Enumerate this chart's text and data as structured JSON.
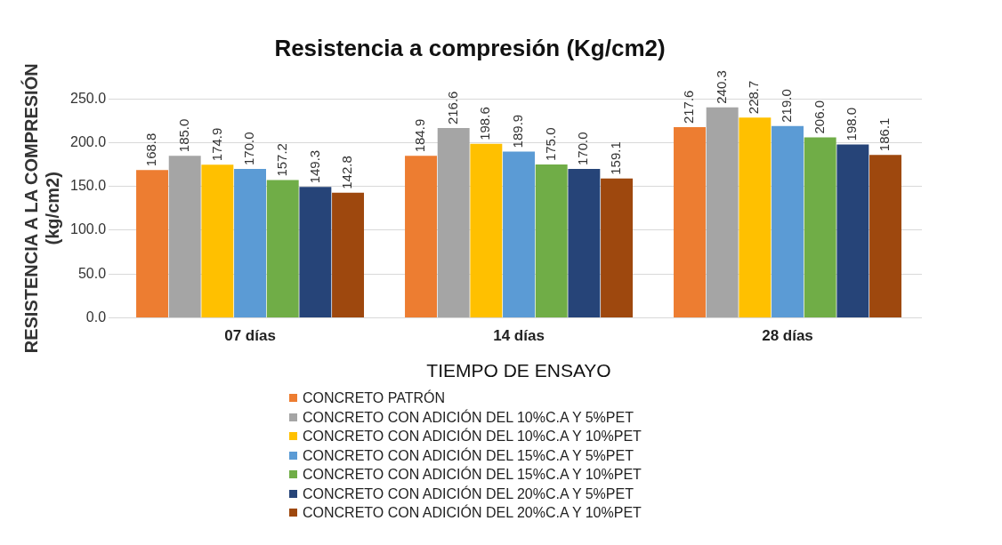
{
  "chart_data": {
    "type": "bar",
    "title": "Resistencia a compresión (Kg/cm2)",
    "xlabel": "TIEMPO DE ENSAYO",
    "ylabel": "RESISTENCIA A LA COMPRESIÓN\n(kg/cm2)",
    "categories": [
      "07 días",
      "14 días",
      "28 días"
    ],
    "ylim": [
      0,
      250
    ],
    "yticks": [
      {
        "value": 0,
        "label": "0.0"
      },
      {
        "value": 50,
        "label": "50.0"
      },
      {
        "value": 100,
        "label": "100.0"
      },
      {
        "value": 150,
        "label": "150.0"
      },
      {
        "value": 200,
        "label": "200.0"
      },
      {
        "value": 250,
        "label": "250.0"
      }
    ],
    "grid": "y",
    "legend": "bottom",
    "series": [
      {
        "name": "CONCRETO PATRÓN",
        "color": "#ed7d31",
        "values": [
          168.8,
          184.9,
          217.6
        ],
        "value_labels": [
          "168.8",
          "184.9",
          "217.6"
        ]
      },
      {
        "name": "CONCRETO CON ADICIÓN DEL 10%C.A Y 5%PET",
        "color": "#a5a5a5",
        "values": [
          185.0,
          216.6,
          240.3
        ],
        "value_labels": [
          "185.0",
          "216.6",
          "240.3"
        ]
      },
      {
        "name": "CONCRETO CON ADICIÓN DEL 10%C.A Y 10%PET",
        "color": "#ffc000",
        "values": [
          174.9,
          198.6,
          228.7
        ],
        "value_labels": [
          "174.9",
          "198.6",
          "228.7"
        ]
      },
      {
        "name": "CONCRETO CON ADICIÓN DEL 15%C.A Y 5%PET",
        "color": "#5b9bd5",
        "values": [
          170.0,
          189.9,
          219.0
        ],
        "value_labels": [
          "170.0",
          "189.9",
          "219.0"
        ]
      },
      {
        "name": "CONCRETO CON ADICIÓN DEL 15%C.A Y 10%PET",
        "color": "#70ad47",
        "values": [
          157.2,
          175.0,
          206.0
        ],
        "value_labels": [
          "157.2",
          "175.0",
          "206.0"
        ]
      },
      {
        "name": "CONCRETO CON ADICIÓN DEL 20%C.A Y 5%PET",
        "color": "#264478",
        "values": [
          149.3,
          170.0,
          198.0
        ],
        "value_labels": [
          "149.3",
          "170.0",
          "198.0"
        ]
      },
      {
        "name": "CONCRETO CON ADICIÓN DEL 20%C.A Y 10%PET",
        "color": "#9e480e",
        "values": [
          142.8,
          159.1,
          186.1
        ],
        "value_labels": [
          "142.8",
          "159.1",
          "186.1"
        ]
      }
    ]
  }
}
